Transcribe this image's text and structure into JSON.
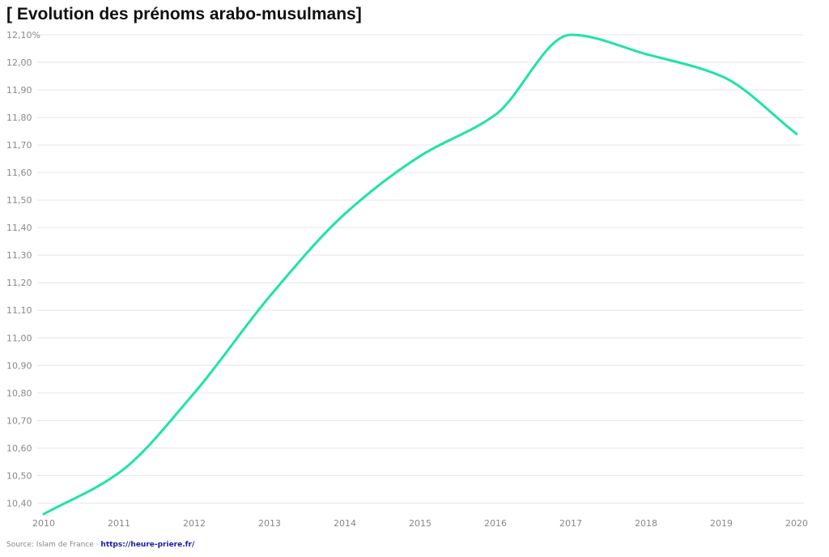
{
  "chart_data": {
    "type": "line",
    "title": "[ Evolution des prénoms arabo-musulmans]",
    "xlabel": "",
    "ylabel": "",
    "x": [
      "2010",
      "2011",
      "2012",
      "2013",
      "2014",
      "2015",
      "2016",
      "2017",
      "2018",
      "2019",
      "2020"
    ],
    "series": [
      {
        "values": [
          10.36,
          10.51,
          10.8,
          11.15,
          11.45,
          11.66,
          11.81,
          12.1,
          12.03,
          11.95,
          11.74
        ],
        "color": "#1ee3a8"
      }
    ],
    "ylim": [
      10.36,
      12.1
    ],
    "y_ticks": [
      12.1,
      12.0,
      11.9,
      11.8,
      11.7,
      11.6,
      11.5,
      11.4,
      11.3,
      11.2,
      11.1,
      11.0,
      10.9,
      10.8,
      10.7,
      10.6,
      10.5,
      10.4
    ],
    "y_tick_labels": [
      "12,10%",
      "12,00",
      "11,90",
      "11,80",
      "11,70",
      "11,60",
      "11,50",
      "11,40",
      "11,30",
      "11,20",
      "11,10",
      "11,00",
      "10,90",
      "10,80",
      "10,70",
      "10,60",
      "10,50",
      "10,40"
    ],
    "grid": true,
    "smooth": true
  },
  "footer": {
    "source_text": "Source: Islam de France · ",
    "link_text": "https://heure-priere.fr/"
  }
}
